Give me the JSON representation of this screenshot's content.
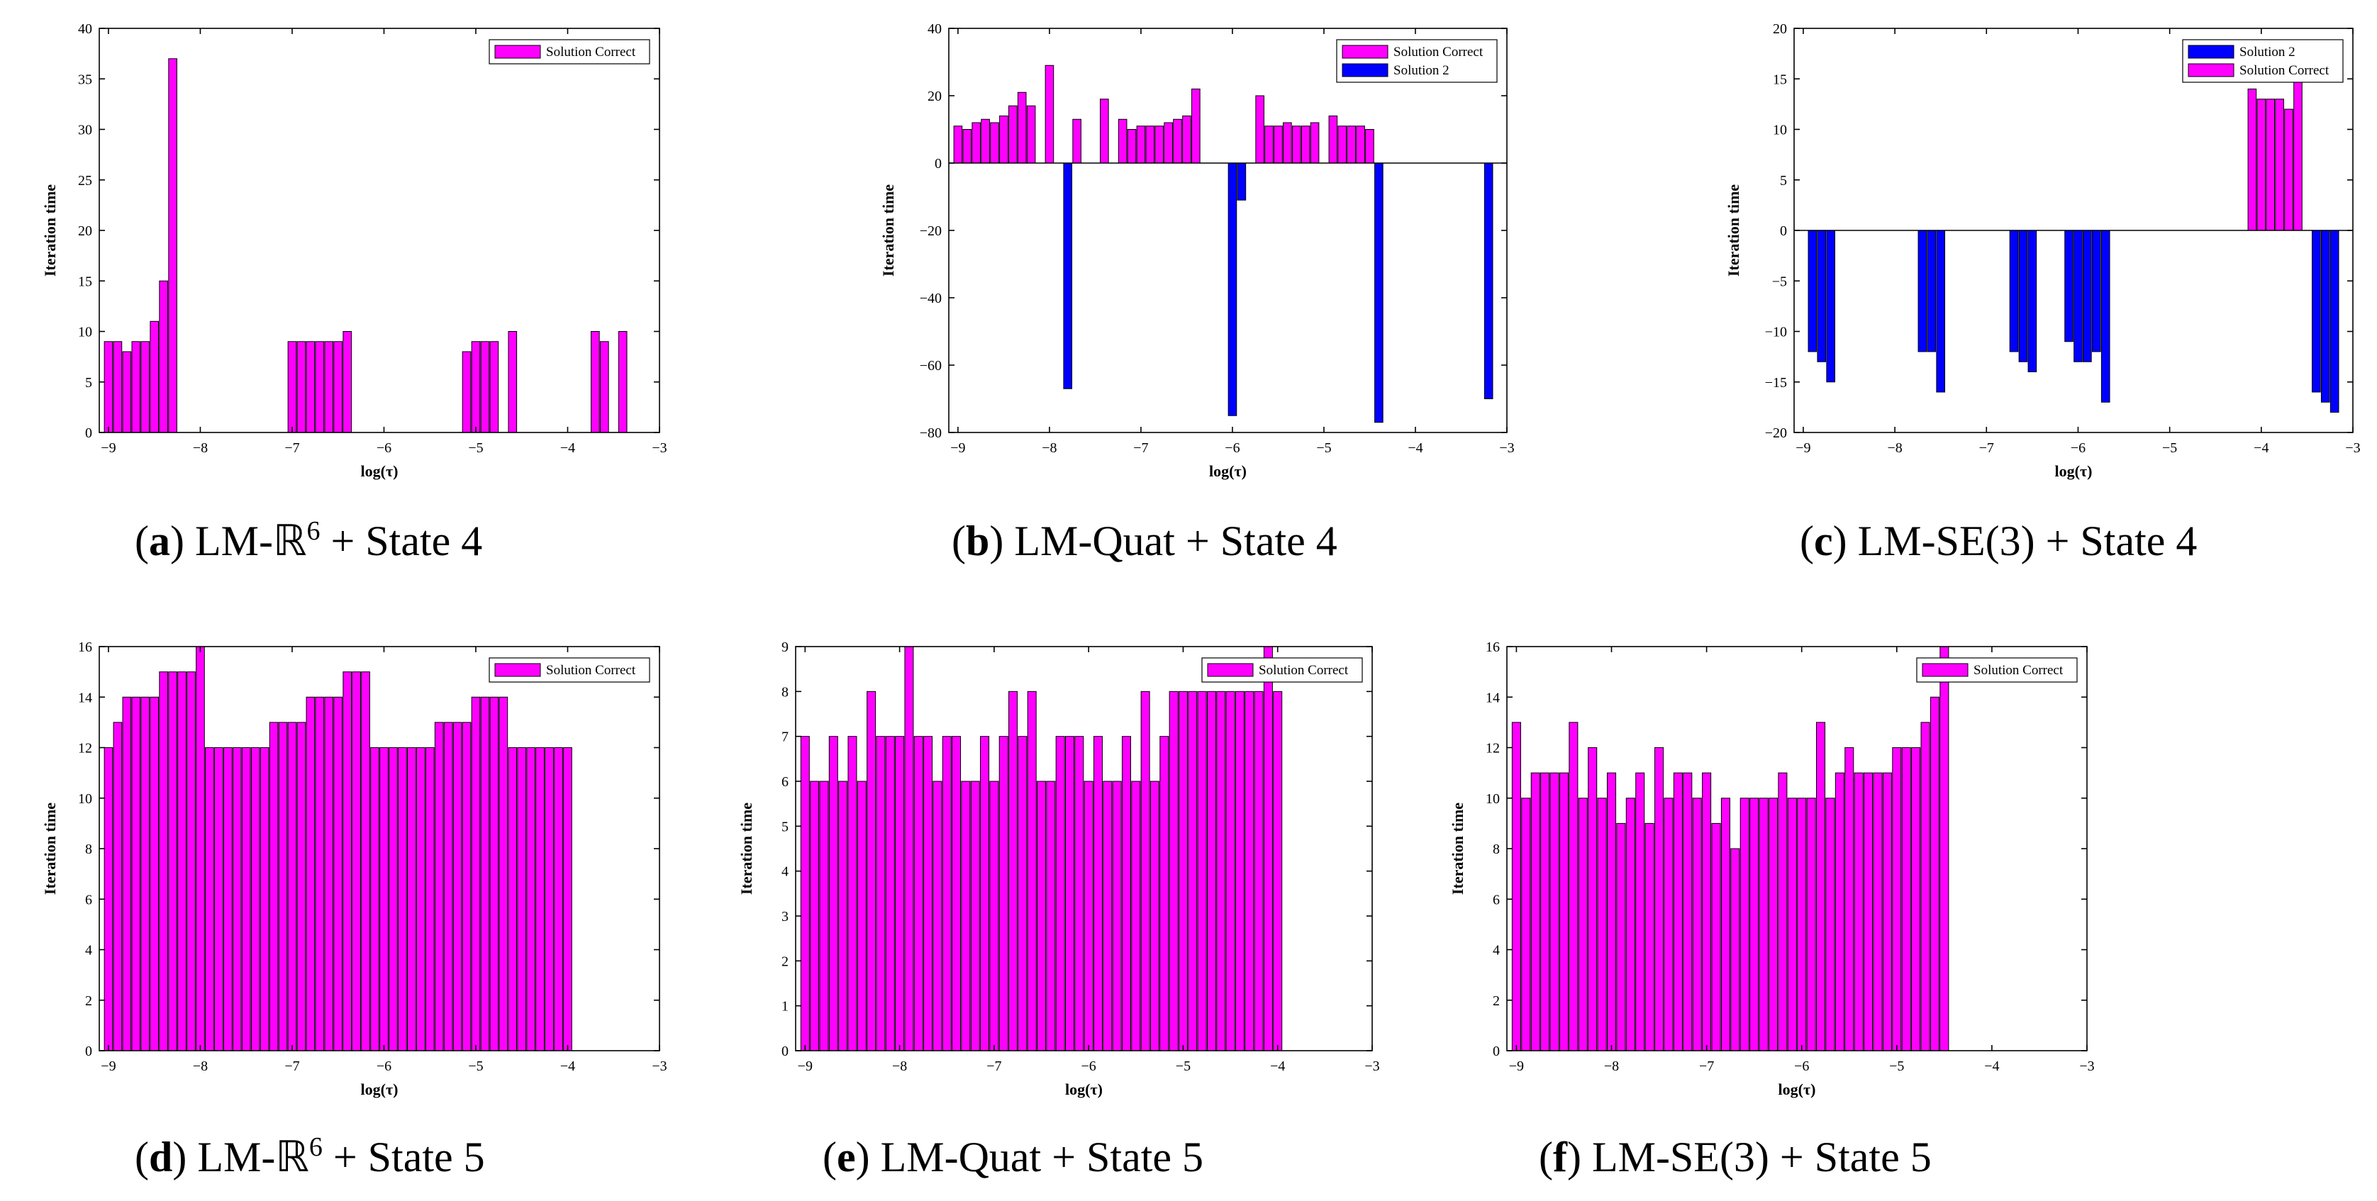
{
  "figure": {
    "ylabel": "Iteration time",
    "xlabel": "log(τ)"
  },
  "colors": {
    "magenta": "#FF00FF",
    "blue": "#0000FF"
  },
  "chart_data": [
    {
      "id": "a",
      "type": "bar",
      "caption": {
        "tag": "a",
        "text": "LM-ℝ",
        "sup": "6",
        "tail": " + State 4"
      },
      "xlim": [
        -9.1,
        -3.0
      ],
      "ylim": [
        0,
        40
      ],
      "xticks": [
        -9,
        -8,
        -7,
        -6,
        -5,
        -4,
        -3
      ],
      "yticks": [
        0,
        5,
        10,
        15,
        20,
        25,
        30,
        35,
        40
      ],
      "legend": [
        "Solution Correct"
      ],
      "series": [
        {
          "name": "Solution Correct",
          "color": "#FF00FF",
          "x": [
            -9.0,
            -8.9,
            -8.8,
            -8.7,
            -8.6,
            -8.5,
            -8.4,
            -8.3,
            -8.2,
            -7.0,
            -6.9,
            -6.8,
            -6.7,
            -6.6,
            -6.5,
            -6.4,
            -5.1,
            -5.0,
            -4.9,
            -4.8,
            -4.6,
            -3.7,
            -3.6,
            -3.4
          ],
          "values": [
            9,
            9,
            8,
            9,
            9,
            11,
            15,
            37,
            0,
            9,
            9,
            9,
            9,
            9,
            9,
            10,
            8,
            9,
            9,
            9,
            10,
            10,
            9,
            10
          ]
        }
      ]
    },
    {
      "id": "b",
      "type": "bar",
      "caption": {
        "tag": "b",
        "text": "LM-Quat + State 4"
      },
      "xlim": [
        -9.1,
        -3.0
      ],
      "ylim": [
        -80,
        40
      ],
      "xticks": [
        -9,
        -8,
        -7,
        -6,
        -5,
        -4,
        -3
      ],
      "yticks": [
        -80,
        -60,
        -40,
        -20,
        0,
        20,
        40
      ],
      "legend": [
        "Solution Correct",
        "Solution 2"
      ],
      "series": [
        {
          "name": "Solution Correct",
          "color": "#FF00FF",
          "x": [
            -9.0,
            -8.9,
            -8.8,
            -8.7,
            -8.6,
            -8.5,
            -8.4,
            -8.3,
            -8.2,
            -8.0,
            -7.7,
            -7.4,
            -7.2,
            -7.1,
            -7.0,
            -6.9,
            -6.8,
            -6.7,
            -6.6,
            -6.5,
            -6.4,
            -6.3,
            -5.7,
            -5.6,
            -5.5,
            -5.4,
            -5.3,
            -5.2,
            -5.1,
            -4.9,
            -4.8,
            -4.7,
            -4.6,
            -4.5
          ],
          "values": [
            11,
            10,
            12,
            13,
            12,
            14,
            17,
            21,
            17,
            29,
            13,
            19,
            13,
            10,
            11,
            11,
            11,
            12,
            13,
            14,
            22,
            0,
            20,
            11,
            11,
            12,
            11,
            11,
            12,
            14,
            11,
            11,
            11,
            10
          ]
        },
        {
          "name": "Solution 2",
          "color": "#0000FF",
          "x": [
            -7.8,
            -6.0,
            -5.9,
            -4.4,
            -3.2
          ],
          "values": [
            -67,
            -75,
            -11,
            -77,
            -70
          ]
        }
      ]
    },
    {
      "id": "c",
      "type": "bar",
      "caption": {
        "tag": "c",
        "text": "LM-SE(3) + State 4"
      },
      "xlim": [
        -9.1,
        -3.0
      ],
      "ylim": [
        -20,
        20
      ],
      "xticks": [
        -9,
        -8,
        -7,
        -6,
        -5,
        -4,
        -3
      ],
      "yticks": [
        -20,
        -15,
        -10,
        -5,
        0,
        5,
        10,
        15,
        20
      ],
      "legend": [
        "Solution 2",
        "Solution Correct"
      ],
      "series": [
        {
          "name": "Solution 2",
          "color": "#0000FF",
          "x": [
            -8.9,
            -8.8,
            -8.7,
            -7.7,
            -7.6,
            -7.5,
            -6.7,
            -6.6,
            -6.5,
            -6.1,
            -6.0,
            -5.9,
            -5.8,
            -5.7,
            -3.4,
            -3.3,
            -3.2
          ],
          "values": [
            -12,
            -13,
            -15,
            -12,
            -12,
            -16,
            -12,
            -13,
            -14,
            -11,
            -13,
            -13,
            -12,
            -17,
            -16,
            -17,
            -18
          ]
        },
        {
          "name": "Solution Correct",
          "color": "#FF00FF",
          "x": [
            -4.1,
            -4.0,
            -3.9,
            -3.8,
            -3.7,
            -3.6
          ],
          "values": [
            14,
            13,
            13,
            13,
            12,
            15
          ]
        }
      ]
    },
    {
      "id": "d",
      "type": "bar",
      "caption": {
        "tag": "d",
        "text": "LM-ℝ",
        "sup": "6",
        "tail": " + State 5"
      },
      "xlim": [
        -9.1,
        -3.0
      ],
      "ylim": [
        0,
        16
      ],
      "xticks": [
        -9,
        -8,
        -7,
        -6,
        -5,
        -4,
        -3
      ],
      "yticks": [
        0,
        2,
        4,
        6,
        8,
        10,
        12,
        14,
        16
      ],
      "legend": [
        "Solution Correct"
      ],
      "series": [
        {
          "name": "Solution Correct",
          "color": "#FF00FF",
          "x_start": -9.0,
          "x_step": 0.1,
          "values": [
            12,
            13,
            14,
            14,
            14,
            14,
            15,
            15,
            15,
            15,
            16,
            12,
            12,
            12,
            12,
            12,
            12,
            12,
            13,
            13,
            13,
            13,
            14,
            14,
            14,
            14,
            15,
            15,
            15,
            12,
            12,
            12,
            12,
            12,
            12,
            12,
            13,
            13,
            13,
            13,
            14,
            14,
            14,
            14,
            12,
            12,
            12,
            12,
            12,
            12,
            12
          ]
        }
      ]
    },
    {
      "id": "e",
      "type": "bar",
      "caption": {
        "tag": "e",
        "text": "LM-Quat + State 5"
      },
      "xlim": [
        -9.1,
        -3.0
      ],
      "ylim": [
        0,
        9
      ],
      "xticks": [
        -9,
        -8,
        -7,
        -6,
        -5,
        -4,
        -3
      ],
      "yticks": [
        0,
        1,
        2,
        3,
        4,
        5,
        6,
        7,
        8,
        9
      ],
      "legend": [
        "Solution Correct"
      ],
      "series": [
        {
          "name": "Solution Correct",
          "color": "#FF00FF",
          "x_start": -9.0,
          "x_step": 0.1,
          "values": [
            7,
            6,
            6,
            7,
            6,
            7,
            6,
            8,
            7,
            7,
            7,
            9,
            7,
            7,
            6,
            7,
            7,
            6,
            6,
            7,
            6,
            7,
            8,
            7,
            8,
            6,
            6,
            7,
            7,
            7,
            6,
            7,
            6,
            6,
            7,
            6,
            8,
            6,
            7,
            8,
            8,
            8,
            8,
            8,
            8,
            8,
            8,
            8,
            8,
            9,
            8
          ]
        }
      ]
    },
    {
      "id": "f",
      "type": "bar",
      "caption": {
        "tag": "f",
        "text": "LM-SE(3) + State 5"
      },
      "xlim": [
        -9.1,
        -3.0
      ],
      "ylim": [
        0,
        16
      ],
      "xticks": [
        -9,
        -8,
        -7,
        -6,
        -5,
        -4,
        -3
      ],
      "yticks": [
        0,
        2,
        4,
        6,
        8,
        10,
        12,
        14,
        16
      ],
      "legend": [
        "Solution Correct"
      ],
      "series": [
        {
          "name": "Solution Correct",
          "color": "#FF00FF",
          "x_start": -9.0,
          "x_step": 0.1,
          "values": [
            13,
            10,
            11,
            11,
            11,
            11,
            13,
            10,
            12,
            10,
            11,
            9,
            10,
            11,
            9,
            12,
            10,
            11,
            11,
            10,
            11,
            9,
            10,
            8,
            10,
            10,
            10,
            10,
            11,
            10,
            10,
            10,
            13,
            10,
            11,
            12,
            11,
            11,
            11,
            11,
            12,
            12,
            12,
            13,
            14,
            16
          ]
        }
      ]
    }
  ]
}
